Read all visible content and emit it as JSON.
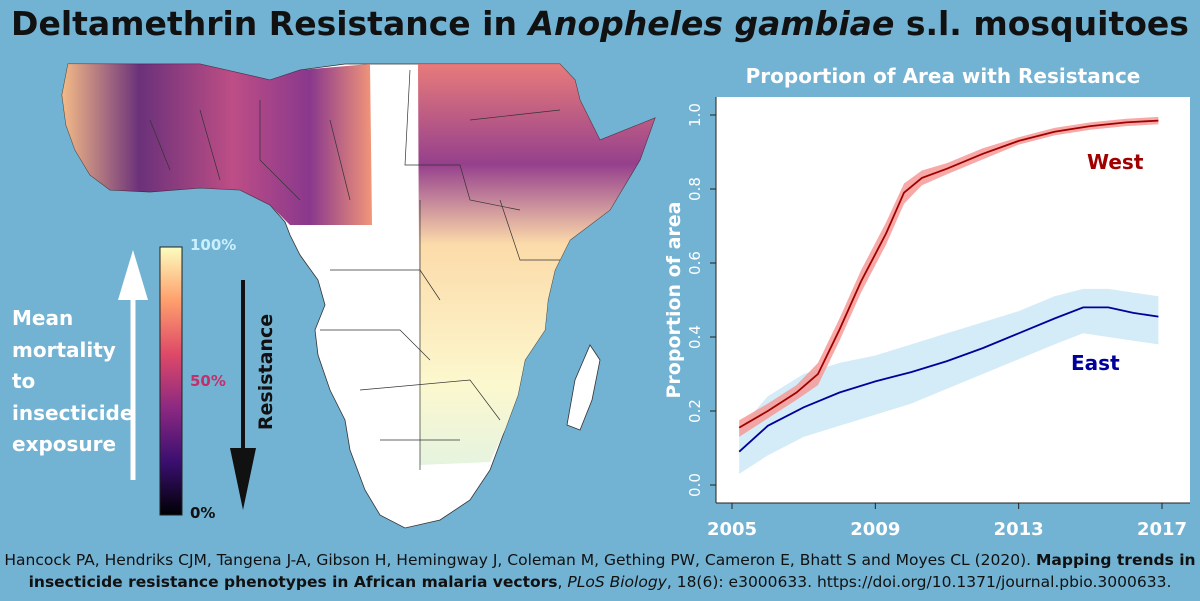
{
  "title": {
    "before": "Deltamethrin Resistance in ",
    "species": "Anopheles gambiae",
    "after": " s.l. mosquitoes"
  },
  "map": {
    "mortality_label": "Mean\nmortality\nto\ninsecticide\nexposure",
    "resistance_label": "Resistance",
    "scale_top": "100%",
    "scale_mid": "50%",
    "scale_bottom": "0%",
    "colors": {
      "ocean": "#72b2d3",
      "scale": [
        "#000004",
        "#3b0f70",
        "#8c2981",
        "#de4968",
        "#fe9f6d",
        "#fcfdbf"
      ],
      "mid_label": "#c2306a",
      "top_label": "#c8f0ff"
    }
  },
  "chart_data": {
    "type": "line",
    "title": "Proportion of Area with Resistance",
    "xlabel": "",
    "ylabel": "Proportion of area",
    "xlim": [
      2005,
      2017
    ],
    "ylim": [
      0,
      1
    ],
    "x_ticks": [
      "2005",
      "2009",
      "2013",
      "2017"
    ],
    "y_ticks": [
      "0.0",
      "0.2",
      "0.4",
      "0.6",
      "0.8",
      "1.0"
    ],
    "series": [
      {
        "name": "West",
        "color": "#a00000",
        "band_color": "#f59a96",
        "x": [
          2005.2,
          2006,
          2006.8,
          2007.4,
          2008,
          2008.6,
          2009.3,
          2009.8,
          2010.3,
          2011,
          2012,
          2013,
          2014,
          2015,
          2016,
          2016.9
        ],
        "y": [
          0.155,
          0.2,
          0.25,
          0.3,
          0.42,
          0.55,
          0.68,
          0.79,
          0.83,
          0.855,
          0.895,
          0.93,
          0.955,
          0.97,
          0.98,
          0.985
        ],
        "lower": [
          0.13,
          0.18,
          0.23,
          0.27,
          0.39,
          0.52,
          0.65,
          0.76,
          0.81,
          0.84,
          0.88,
          0.92,
          0.945,
          0.96,
          0.97,
          0.975
        ],
        "upper": [
          0.175,
          0.22,
          0.27,
          0.33,
          0.45,
          0.58,
          0.71,
          0.815,
          0.85,
          0.87,
          0.91,
          0.94,
          0.965,
          0.98,
          0.99,
          0.995
        ]
      },
      {
        "name": "East",
        "color": "#00009a",
        "band_color": "#d4ebf8",
        "x": [
          2005.2,
          2006,
          2007,
          2008,
          2009,
          2010,
          2011,
          2012,
          2013,
          2014,
          2014.8,
          2015.5,
          2016.2,
          2016.9
        ],
        "y": [
          0.09,
          0.16,
          0.21,
          0.25,
          0.28,
          0.305,
          0.335,
          0.37,
          0.41,
          0.45,
          0.48,
          0.48,
          0.465,
          0.455
        ],
        "lower": [
          0.03,
          0.08,
          0.13,
          0.16,
          0.19,
          0.22,
          0.26,
          0.3,
          0.34,
          0.38,
          0.41,
          0.4,
          0.39,
          0.38
        ],
        "upper": [
          0.15,
          0.24,
          0.3,
          0.33,
          0.35,
          0.38,
          0.41,
          0.44,
          0.47,
          0.51,
          0.53,
          0.53,
          0.52,
          0.51
        ]
      }
    ],
    "annotations": [
      "West",
      "East"
    ]
  },
  "citation": {
    "authors": "Hancock PA, Hendriks CJM, Tangena J-A, Gibson H, Hemingway J, Coleman M, Gething PW, Cameron E, Bhatt S and Moyes CL (2020).",
    "article_title": "Mapping trends in insecticide resistance phenotypes in African malaria vectors",
    "journal": "PLoS Biology",
    "rest": ", 18(6): e3000633. https://doi.org/10.1371/journal.pbio.3000633."
  }
}
